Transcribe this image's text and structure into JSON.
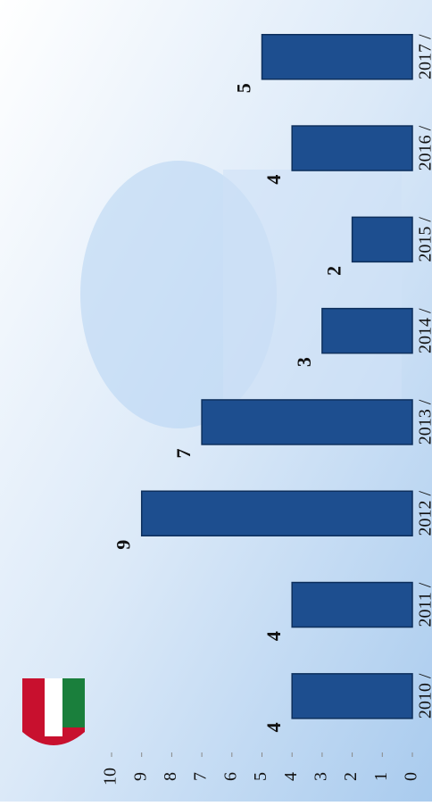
{
  "chart_data": {
    "type": "bar",
    "categories": [
      "2010 /",
      "2011 /",
      "2012 /",
      "2013 /",
      "2014 /",
      "2015 /",
      "2016 /",
      "2017 /"
    ],
    "values": [
      4,
      4,
      9,
      7,
      3,
      2,
      4,
      5
    ],
    "color": "#1d4e8f",
    "ylim": [
      0,
      10
    ],
    "yticks": [
      0,
      1,
      2,
      3,
      4,
      5,
      6,
      7,
      8,
      9,
      10
    ]
  }
}
